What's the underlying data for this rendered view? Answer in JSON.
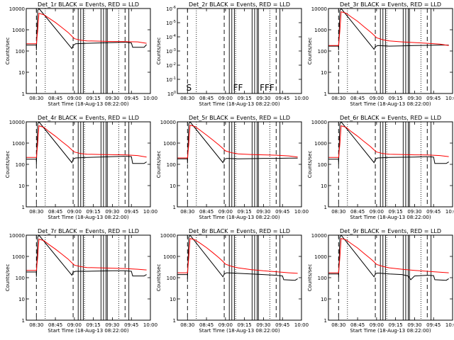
{
  "figure": {
    "tick_times": [
      "08:30",
      "08:45",
      "09:00",
      "09:15",
      "09:30",
      "09:45",
      "10:00"
    ],
    "xlabel": "Start Time (18-Aug-13 08:22:00)",
    "ylabel": "Counts/sec",
    "colors": {
      "events": "#000000",
      "lld": "#ff0000"
    }
  },
  "chart_data": [
    {
      "type": "line",
      "title": "Det_1r BLACK = Events, RED = LLD",
      "yscale": "log",
      "ylim": [
        1,
        10000
      ],
      "yticks": [
        "1",
        "10",
        "100",
        "1000",
        "10000"
      ],
      "xlim": [
        "08:22",
        "10:00"
      ],
      "flags": [],
      "series": [
        {
          "name": "Events",
          "color": "#000000",
          "x": [
            "08:22",
            "08:30",
            "08:30",
            "08:31",
            "08:32",
            "08:58",
            "08:59",
            "09:00",
            "09:01",
            "09:10",
            "09:20",
            "09:30",
            "09:40",
            "09:45",
            "09:46",
            "09:55",
            "09:57"
          ],
          "y": [
            190,
            190,
            110,
            8000,
            10000,
            130,
            180,
            200,
            220,
            230,
            240,
            250,
            260,
            240,
            150,
            150,
            200
          ]
        },
        {
          "name": "LLD",
          "color": "#ff0000",
          "x": [
            "08:22",
            "08:30",
            "08:31",
            "08:32",
            "08:36",
            "08:40",
            "08:45",
            "08:50",
            "08:55",
            "08:58",
            "09:00",
            "09:05",
            "09:10",
            "09:20",
            "09:30",
            "09:40",
            "09:50",
            "09:57"
          ],
          "y": [
            220,
            220,
            900,
            6000,
            5000,
            3500,
            2200,
            1300,
            750,
            500,
            380,
            320,
            300,
            290,
            280,
            275,
            270,
            230
          ]
        }
      ]
    },
    {
      "type": "line",
      "title": "Det_2r BLACK = Events, RED = LLD",
      "yscale": "log",
      "ylim": [
        1,
        1e-06
      ],
      "yticks": [
        "10^0",
        "10^-1",
        "10^-2",
        "10^-3",
        "10^-4",
        "10^-5",
        "10^-6"
      ],
      "xlim": [
        "08:22",
        "10:00"
      ],
      "flags": [
        "S",
        "FF",
        "FFF"
      ],
      "series": []
    },
    {
      "type": "line",
      "title": "Det_3r BLACK = Events, RED = LLD",
      "yscale": "log",
      "ylim": [
        1,
        10000
      ],
      "yticks": [
        "1",
        "10",
        "100",
        "1000",
        "10000"
      ],
      "xlim": [
        "08:22",
        "10:00"
      ],
      "flags": [],
      "series": [
        {
          "name": "Events",
          "color": "#000000",
          "x": [
            "08:22",
            "08:30",
            "08:30",
            "08:31",
            "08:32",
            "08:58",
            "08:59",
            "09:00",
            "09:01",
            "09:10",
            "09:20",
            "09:30",
            "09:40",
            "09:50",
            "09:57"
          ],
          "y": [
            170,
            170,
            110,
            8000,
            10000,
            120,
            160,
            170,
            180,
            170,
            175,
            180,
            185,
            190,
            190
          ]
        },
        {
          "name": "LLD",
          "color": "#ff0000",
          "x": [
            "08:22",
            "08:30",
            "08:31",
            "08:32",
            "08:36",
            "08:40",
            "08:45",
            "08:50",
            "08:55",
            "08:58",
            "09:00",
            "09:05",
            "09:10",
            "09:20",
            "09:30",
            "09:40",
            "09:50",
            "09:57"
          ],
          "y": [
            180,
            180,
            900,
            7000,
            6000,
            4000,
            2500,
            1400,
            800,
            550,
            420,
            340,
            300,
            270,
            250,
            230,
            210,
            180
          ]
        }
      ]
    },
    {
      "type": "line",
      "title": "Det_4r BLACK = Events, RED = LLD",
      "yscale": "log",
      "ylim": [
        1,
        10000
      ],
      "yticks": [
        "1",
        "10",
        "100",
        "1000",
        "10000"
      ],
      "xlim": [
        "08:22",
        "10:00"
      ],
      "flags": [],
      "series": [
        {
          "name": "Events",
          "color": "#000000",
          "x": [
            "08:22",
            "08:30",
            "08:30",
            "08:31",
            "08:32",
            "08:58",
            "08:59",
            "09:00",
            "09:01",
            "09:10",
            "09:20",
            "09:30",
            "09:40",
            "09:45",
            "09:46",
            "09:55",
            "09:57"
          ],
          "y": [
            175,
            175,
            100,
            8000,
            10000,
            120,
            170,
            190,
            200,
            210,
            220,
            230,
            240,
            230,
            110,
            110,
            130
          ]
        },
        {
          "name": "LLD",
          "color": "#ff0000",
          "x": [
            "08:22",
            "08:30",
            "08:31",
            "08:32",
            "08:36",
            "08:40",
            "08:45",
            "08:50",
            "08:55",
            "08:58",
            "09:00",
            "09:05",
            "09:10",
            "09:20",
            "09:30",
            "09:40",
            "09:50",
            "09:57"
          ],
          "y": [
            210,
            210,
            900,
            6500,
            5500,
            3500,
            2100,
            1200,
            700,
            480,
            380,
            320,
            300,
            290,
            285,
            280,
            260,
            220
          ]
        }
      ]
    },
    {
      "type": "line",
      "title": "Det_5r BLACK = Events, RED = LLD",
      "yscale": "log",
      "ylim": [
        1,
        10000
      ],
      "yticks": [
        "1",
        "10",
        "100",
        "1000",
        "10000"
      ],
      "xlim": [
        "08:22",
        "10:00"
      ],
      "flags": [],
      "series": [
        {
          "name": "Events",
          "color": "#000000",
          "x": [
            "08:22",
            "08:30",
            "08:30",
            "08:31",
            "08:32",
            "08:58",
            "08:59",
            "09:00",
            "09:01",
            "09:10",
            "09:20",
            "09:30",
            "09:40",
            "09:50",
            "09:57"
          ],
          "y": [
            180,
            180,
            110,
            8000,
            10000,
            120,
            170,
            180,
            190,
            180,
            185,
            190,
            190,
            195,
            195
          ]
        },
        {
          "name": "LLD",
          "color": "#ff0000",
          "x": [
            "08:22",
            "08:30",
            "08:31",
            "08:32",
            "08:36",
            "08:40",
            "08:45",
            "08:50",
            "08:55",
            "08:58",
            "09:00",
            "09:05",
            "09:10",
            "09:20",
            "09:30",
            "09:40",
            "09:50",
            "09:57"
          ],
          "y": [
            200,
            200,
            900,
            7000,
            6000,
            4000,
            2400,
            1400,
            800,
            560,
            430,
            350,
            310,
            290,
            280,
            270,
            250,
            220
          ]
        }
      ]
    },
    {
      "type": "line",
      "title": "Det_6r BLACK = Events, RED = LLD",
      "yscale": "log",
      "ylim": [
        1,
        10000
      ],
      "yticks": [
        "1",
        "10",
        "100",
        "1000",
        "10000"
      ],
      "xlim": [
        "08:22",
        "10:00"
      ],
      "flags": [],
      "series": [
        {
          "name": "Events",
          "color": "#000000",
          "x": [
            "08:22",
            "08:30",
            "08:30",
            "08:31",
            "08:32",
            "08:58",
            "08:59",
            "09:00",
            "09:01",
            "09:10",
            "09:20",
            "09:30",
            "09:40",
            "09:45",
            "09:46",
            "09:55",
            "09:57"
          ],
          "y": [
            175,
            175,
            100,
            8000,
            10000,
            120,
            170,
            190,
            200,
            210,
            215,
            220,
            230,
            220,
            110,
            110,
            130
          ]
        },
        {
          "name": "LLD",
          "color": "#ff0000",
          "x": [
            "08:22",
            "08:30",
            "08:31",
            "08:32",
            "08:36",
            "08:40",
            "08:45",
            "08:50",
            "08:55",
            "08:58",
            "09:00",
            "09:05",
            "09:10",
            "09:20",
            "09:30",
            "09:40",
            "09:50",
            "09:57"
          ],
          "y": [
            210,
            210,
            900,
            6500,
            5500,
            3500,
            2100,
            1200,
            700,
            480,
            380,
            320,
            300,
            290,
            280,
            275,
            260,
            230
          ]
        }
      ]
    },
    {
      "type": "line",
      "title": "Det_7r BLACK = Events, RED = LLD",
      "yscale": "log",
      "ylim": [
        1,
        10000
      ],
      "yticks": [
        "1",
        "10",
        "100",
        "1000",
        "10000"
      ],
      "xlim": [
        "08:22",
        "10:00"
      ],
      "flags": [],
      "series": [
        {
          "name": "Events",
          "color": "#000000",
          "x": [
            "08:22",
            "08:30",
            "08:30",
            "08:31",
            "08:32",
            "08:58",
            "08:59",
            "09:00",
            "09:01",
            "09:10",
            "09:20",
            "09:30",
            "09:40",
            "09:45",
            "09:46",
            "09:55",
            "09:57"
          ],
          "y": [
            185,
            185,
            110,
            8000,
            10000,
            130,
            180,
            190,
            200,
            200,
            205,
            210,
            210,
            200,
            120,
            120,
            140
          ]
        },
        {
          "name": "LLD",
          "color": "#ff0000",
          "x": [
            "08:22",
            "08:30",
            "08:31",
            "08:32",
            "08:36",
            "08:40",
            "08:45",
            "08:50",
            "08:55",
            "08:58",
            "09:00",
            "09:05",
            "09:10",
            "09:20",
            "09:30",
            "09:40",
            "09:50",
            "09:57"
          ],
          "y": [
            220,
            220,
            900,
            6500,
            5500,
            3600,
            2200,
            1300,
            750,
            500,
            390,
            330,
            300,
            290,
            280,
            270,
            250,
            230
          ]
        }
      ]
    },
    {
      "type": "line",
      "title": "Det_8r BLACK = Events, RED = LLD",
      "yscale": "log",
      "ylim": [
        1,
        10000
      ],
      "yticks": [
        "1",
        "10",
        "100",
        "1000",
        "10000"
      ],
      "xlim": [
        "08:22",
        "10:00"
      ],
      "flags": [],
      "series": [
        {
          "name": "Events",
          "color": "#000000",
          "x": [
            "08:22",
            "08:30",
            "08:30",
            "08:31",
            "08:32",
            "08:58",
            "08:59",
            "09:00",
            "09:01",
            "09:10",
            "09:20",
            "09:30",
            "09:40",
            "09:45",
            "09:46",
            "09:55",
            "09:57"
          ],
          "y": [
            140,
            140,
            90,
            8000,
            10000,
            110,
            150,
            160,
            170,
            160,
            150,
            140,
            130,
            120,
            80,
            75,
            90
          ]
        },
        {
          "name": "LLD",
          "color": "#ff0000",
          "x": [
            "08:22",
            "08:30",
            "08:31",
            "08:32",
            "08:36",
            "08:40",
            "08:45",
            "08:50",
            "08:55",
            "08:58",
            "09:00",
            "09:05",
            "09:10",
            "09:20",
            "09:30",
            "09:40",
            "09:50",
            "09:57"
          ],
          "y": [
            170,
            170,
            900,
            7000,
            6000,
            4200,
            2600,
            1500,
            850,
            580,
            430,
            340,
            290,
            240,
            210,
            190,
            170,
            160
          ]
        }
      ]
    },
    {
      "type": "line",
      "title": "Det_9r BLACK = Events, RED = LLD",
      "yscale": "log",
      "ylim": [
        1,
        10000
      ],
      "yticks": [
        "1",
        "10",
        "100",
        "1000",
        "10000"
      ],
      "xlim": [
        "08:22",
        "10:00"
      ],
      "flags": [],
      "series": [
        {
          "name": "Events",
          "color": "#000000",
          "x": [
            "08:22",
            "08:30",
            "08:30",
            "08:31",
            "08:32",
            "08:58",
            "08:59",
            "09:00",
            "09:01",
            "09:10",
            "09:20",
            "09:25",
            "09:27",
            "09:30",
            "09:40",
            "09:45",
            "09:46",
            "09:55",
            "09:57"
          ],
          "y": [
            150,
            150,
            100,
            8000,
            10000,
            110,
            150,
            160,
            165,
            150,
            140,
            120,
            80,
            120,
            130,
            125,
            80,
            75,
            90
          ]
        },
        {
          "name": "LLD",
          "color": "#ff0000",
          "x": [
            "08:22",
            "08:30",
            "08:31",
            "08:32",
            "08:36",
            "08:40",
            "08:45",
            "08:50",
            "08:55",
            "08:58",
            "09:00",
            "09:05",
            "09:10",
            "09:20",
            "09:30",
            "09:40",
            "09:50",
            "09:57"
          ],
          "y": [
            170,
            170,
            900,
            7000,
            6000,
            4000,
            2500,
            1400,
            800,
            560,
            420,
            340,
            290,
            250,
            220,
            200,
            180,
            170
          ]
        }
      ]
    }
  ]
}
